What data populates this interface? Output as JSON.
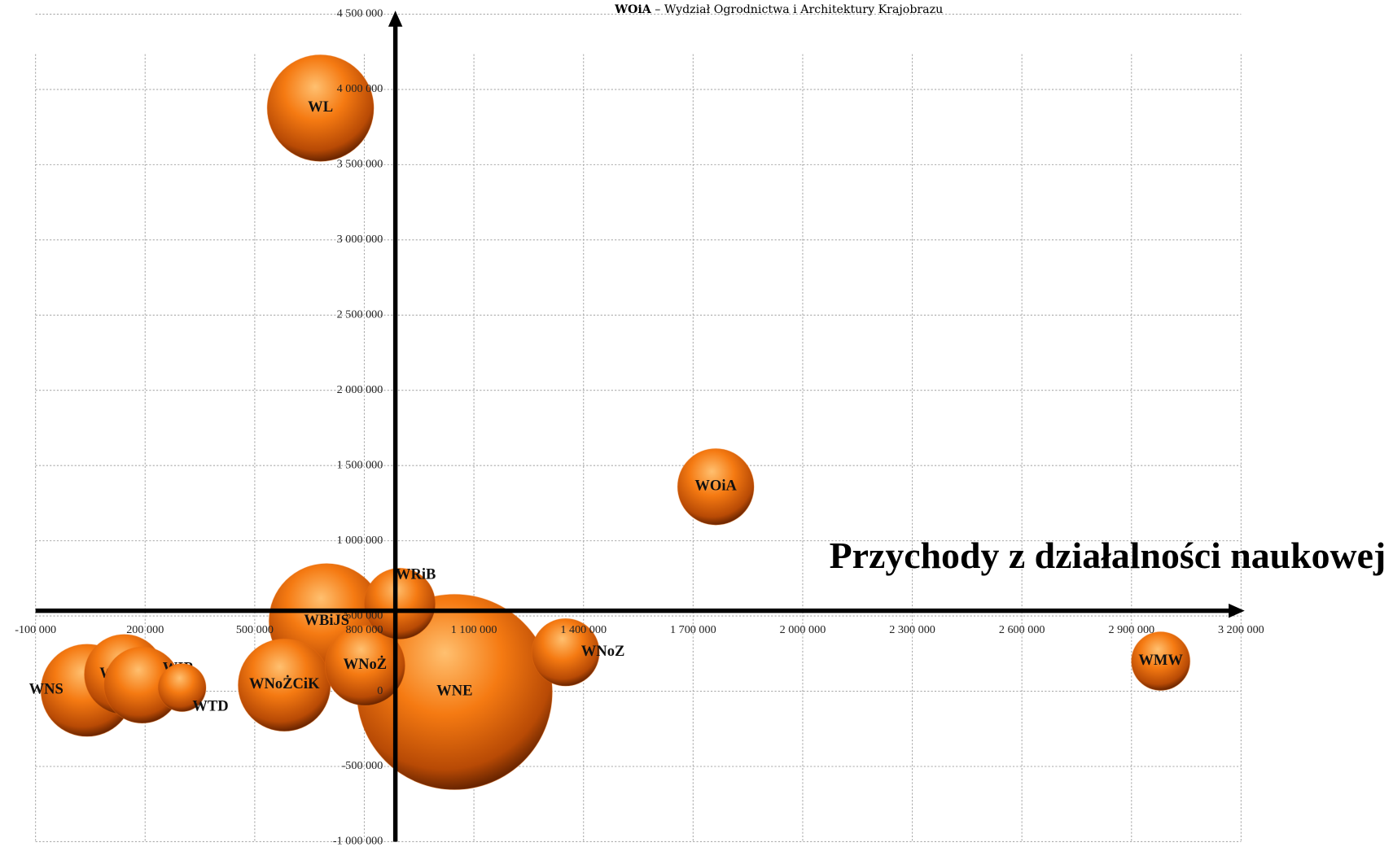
{
  "chart_data": {
    "type": "bubble",
    "legend_note": {
      "abbr": "WOiA",
      "text": "– Wydział Ogrodnictwa i Architektury Krajobrazu"
    },
    "x_label": "Przychody z działalności naukowej",
    "color": "#f07010",
    "grid": true,
    "xlim": [
      -100000,
      3200000
    ],
    "ylim": [
      -1000000,
      4500000
    ],
    "axis_cross": {
      "x": 885000,
      "y": 535000
    },
    "xticks": [
      {
        "value": -100000,
        "label": "-100 000"
      },
      {
        "value": 200000,
        "label": "200 000"
      },
      {
        "value": 500000,
        "label": "500 000"
      },
      {
        "value": 800000,
        "label": "800 000"
      },
      {
        "value": 1100000,
        "label": "1 100 000"
      },
      {
        "value": 1400000,
        "label": "1 400 000"
      },
      {
        "value": 1700000,
        "label": "1 700 000"
      },
      {
        "value": 2000000,
        "label": "2 000 000"
      },
      {
        "value": 2300000,
        "label": "2 300 000"
      },
      {
        "value": 2600000,
        "label": "2 600 000"
      },
      {
        "value": 2900000,
        "label": "2 900 000"
      },
      {
        "value": 3200000,
        "label": "3 200 000"
      }
    ],
    "yticks": [
      {
        "value": -1000000,
        "label": "-1 000 000"
      },
      {
        "value": -500000,
        "label": "-500 000"
      },
      0,
      {
        "value": 500000,
        "label": "500 000"
      },
      {
        "value": 1000000,
        "label": "1 000 000"
      },
      {
        "value": 1500000,
        "label": "1 500 000"
      },
      {
        "value": 2000000,
        "label": "2 000 000"
      },
      {
        "value": 2500000,
        "label": "2 500 000"
      },
      {
        "value": 3000000,
        "label": "3 000 000"
      },
      {
        "value": 3500000,
        "label": "3 500 000"
      },
      {
        "value": 4000000,
        "label": "4 000 000"
      },
      {
        "value": 4500000,
        "label": "4 500 000"
      }
    ],
    "labels": [
      "WL",
      "WOiA",
      "WRiB",
      "WBiJŚ",
      "WNE",
      "WNoZ",
      "WMW",
      "WNoŻ",
      "WNoŻCiK",
      "WTD",
      "WIP",
      "WZIiM",
      "WNS"
    ],
    "x": [
      680000,
      1762000,
      897000,
      697000,
      1047000,
      1351000,
      2980000,
      802000,
      581000,
      301000,
      192000,
      143000,
      41000
    ],
    "values": [
      3876000,
      1359000,
      582000,
      465000,
      -5000,
      259000,
      200000,
      171000,
      41000,
      24000,
      41000,
      112000,
      6000
    ],
    "sizes": [
      3600,
      1850,
      1600,
      4225,
      12100,
      1444,
      1089,
      2025,
      2704,
      729,
      1849,
      2025,
      2704
    ]
  }
}
